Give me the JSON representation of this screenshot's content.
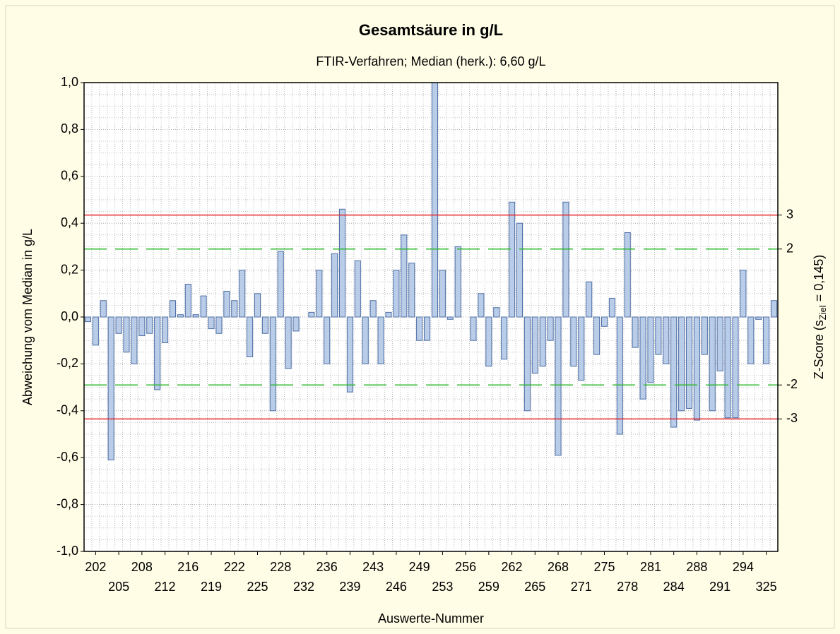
{
  "chart_data": {
    "type": "bar",
    "title": "Gesamtsäure in g/L",
    "subtitle": "FTIR-Verfahren; Median (herk.): 6,60 g/L",
    "ylabel": "Abweichung vom Median in g/L",
    "xlabel": "Auswerte-Nummer",
    "y2label": [
      "Z-Score (s",
      "Ziel",
      " = 0,145)"
    ],
    "color": "#b9cde8",
    "edgecolor": "#4d6ea6",
    "grid": true,
    "ylim": [
      -1.0,
      1.0
    ],
    "yticks": [
      {
        "value": 1.0,
        "label": "1,0"
      },
      {
        "value": 0.8,
        "label": "0,8"
      },
      {
        "value": 0.6,
        "label": "0,6"
      },
      {
        "value": 0.4,
        "label": "0,4"
      },
      {
        "value": 0.2,
        "label": "0,2"
      },
      {
        "value": 0.0,
        "label": "0,0"
      },
      {
        "value": -0.2,
        "label": "-0,2"
      },
      {
        "value": -0.4,
        "label": "-0,4"
      },
      {
        "value": -0.6,
        "label": "-0,6"
      },
      {
        "value": -0.8,
        "label": "-0,8"
      },
      {
        "value": -1.0,
        "label": "-1,0"
      }
    ],
    "reference_lines": [
      {
        "value": 0.435,
        "label": "3",
        "color": "#e8262b",
        "dashed": false
      },
      {
        "value": 0.29,
        "label": "2",
        "color": "#2db82d",
        "dashed": true
      },
      {
        "value": -0.29,
        "label": "-2",
        "color": "#2db82d",
        "dashed": true
      },
      {
        "value": -0.435,
        "label": "-3",
        "color": "#e8262b",
        "dashed": false
      }
    ],
    "categories": [
      null,
      "202",
      null,
      null,
      "205",
      null,
      null,
      "208",
      null,
      null,
      "212",
      null,
      null,
      "216",
      null,
      null,
      "219",
      null,
      null,
      "222",
      null,
      null,
      "225",
      null,
      null,
      "228",
      null,
      null,
      "232",
      null,
      null,
      "236",
      null,
      null,
      "239",
      null,
      null,
      "243",
      null,
      null,
      "246",
      null,
      null,
      "249",
      null,
      null,
      "253",
      null,
      null,
      "256",
      null,
      null,
      "259",
      null,
      null,
      "262",
      null,
      null,
      "265",
      null,
      null,
      "268",
      null,
      null,
      "271",
      null,
      null,
      "275",
      null,
      null,
      "278",
      null,
      null,
      "281",
      null,
      null,
      "284",
      null,
      null,
      "288",
      null,
      null,
      "291",
      null,
      null,
      "294",
      null,
      null,
      "325",
      null
    ],
    "values": [
      -0.02,
      -0.12,
      0.07,
      -0.61,
      -0.07,
      -0.15,
      -0.2,
      -0.08,
      -0.07,
      -0.31,
      -0.11,
      0.07,
      0.01,
      0.14,
      0.01,
      0.09,
      -0.05,
      -0.07,
      0.11,
      0.07,
      0.2,
      -0.17,
      0.1,
      -0.07,
      -0.4,
      0.28,
      -0.22,
      -0.06,
      null,
      0.02,
      0.2,
      -0.2,
      0.27,
      0.46,
      -0.32,
      0.24,
      -0.2,
      0.07,
      -0.2,
      0.02,
      0.2,
      0.35,
      0.23,
      -0.1,
      -0.1,
      1.0,
      0.2,
      -0.01,
      0.3,
      null,
      -0.1,
      0.1,
      -0.21,
      0.04,
      -0.18,
      0.49,
      0.4,
      -0.4,
      -0.24,
      -0.21,
      -0.1,
      -0.59,
      0.49,
      -0.21,
      -0.27,
      0.15,
      -0.16,
      -0.04,
      0.08,
      -0.5,
      0.36,
      -0.13,
      -0.35,
      -0.28,
      -0.16,
      -0.2,
      -0.47,
      -0.4,
      -0.39,
      -0.44,
      -0.16,
      -0.4,
      -0.23,
      -0.43,
      -0.43,
      0.2,
      -0.2,
      -0.01,
      -0.2,
      0.07
    ]
  }
}
